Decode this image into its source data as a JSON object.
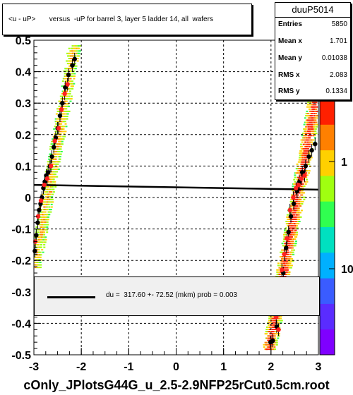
{
  "title": "<u - uP>       versus  -uP for barrel 3, layer 5 ladder 14, all  wafers",
  "stats": {
    "name": "duuP5014",
    "rows": [
      {
        "label": "Entries",
        "value": "5850"
      },
      {
        "label": "Mean x",
        "value": "1.701"
      },
      {
        "label": "Mean y",
        "value": "0.01038"
      },
      {
        "label": "RMS x",
        "value": "2.083"
      },
      {
        "label": "RMS y",
        "value": "0.1334"
      }
    ]
  },
  "legend": {
    "text": "du =  317.60 +- 72.52 (mkm) prob = 0.003"
  },
  "footer": "cOnly_JPlotsG44G_u_2.5-2.9NFP25rCut0.5cm.root",
  "colors": {
    "frame": "#000000",
    "grid": "#000000",
    "fit_line": "#000000",
    "marker_black": "#000000",
    "marker_red": "#ff2020",
    "palette": [
      "#7f00ff",
      "#5a2cff",
      "#3a5cff",
      "#00b0ff",
      "#00e0c0",
      "#30ff50",
      "#a0ff10",
      "#ffd000",
      "#ff8000",
      "#ff2000"
    ]
  },
  "chart_data": {
    "type": "scatter",
    "xlim": [
      -3,
      3
    ],
    "ylim": [
      -0.5,
      0.5
    ],
    "x_ticks": [
      "-3",
      "-2",
      "-1",
      "0",
      "1",
      "2",
      "3"
    ],
    "y_ticks": [
      "-0.5",
      "-0.4",
      "-0.3",
      "-0.2",
      "-0.1",
      "0",
      "0.1",
      "0.2",
      "0.3",
      "0.4",
      "0.5"
    ],
    "colorbar_ticks": [
      "10",
      "1"
    ],
    "colorbar_scale": "log",
    "grid": true,
    "fit_line": {
      "x": [
        -3,
        3
      ],
      "y": [
        0.04,
        0.025
      ]
    },
    "black_markers": [
      [
        -2.98,
        -0.17
      ],
      [
        -2.95,
        -0.12
      ],
      [
        -2.92,
        -0.08
      ],
      [
        -2.89,
        -0.04
      ],
      [
        -2.86,
        -0.02
      ],
      [
        -2.83,
        0.0
      ],
      [
        -2.8,
        0.03
      ],
      [
        -2.77,
        0.05
      ],
      [
        -2.74,
        0.07
      ],
      [
        -2.7,
        0.08
      ],
      [
        -2.66,
        0.1
      ],
      [
        -2.62,
        0.13
      ],
      [
        -2.58,
        0.16
      ],
      [
        -2.54,
        0.19
      ],
      [
        -2.5,
        0.22
      ],
      [
        -2.45,
        0.26
      ],
      [
        -2.4,
        0.3
      ],
      [
        -2.34,
        0.35
      ],
      [
        -2.27,
        0.39
      ],
      [
        -2.19,
        0.42
      ],
      [
        -2.14,
        0.44
      ],
      [
        1.99,
        -0.46
      ],
      [
        2.04,
        -0.455
      ],
      [
        2.12,
        -0.41
      ],
      [
        2.26,
        -0.24
      ],
      [
        2.32,
        -0.16
      ],
      [
        2.37,
        -0.11
      ],
      [
        2.42,
        -0.06
      ],
      [
        2.48,
        -0.02
      ],
      [
        2.55,
        0.02
      ],
      [
        2.6,
        0.05
      ],
      [
        2.66,
        0.08
      ],
      [
        2.73,
        0.1
      ],
      [
        2.8,
        0.13
      ],
      [
        2.86,
        0.15
      ],
      [
        2.93,
        0.17
      ]
    ],
    "red_markers": [
      [
        -2.97,
        -0.14
      ],
      [
        -2.91,
        -0.06
      ],
      [
        -2.85,
        -0.01
      ],
      [
        -2.78,
        0.04
      ],
      [
        -2.72,
        0.06
      ],
      [
        -2.64,
        0.1
      ],
      [
        -2.56,
        0.18
      ],
      [
        -2.48,
        0.22
      ],
      [
        -2.42,
        0.28
      ],
      [
        -2.35,
        0.33
      ],
      [
        -2.29,
        0.36
      ],
      [
        2.11,
        -0.38
      ],
      [
        2.16,
        -0.42
      ],
      [
        2.23,
        -0.23
      ],
      [
        2.28,
        -0.18
      ],
      [
        2.34,
        -0.13
      ],
      [
        2.4,
        -0.04
      ],
      [
        2.47,
        0.0
      ],
      [
        2.53,
        0.03
      ],
      [
        2.58,
        0.04
      ],
      [
        2.64,
        0.06
      ],
      [
        2.71,
        0.07
      ]
    ]
  }
}
